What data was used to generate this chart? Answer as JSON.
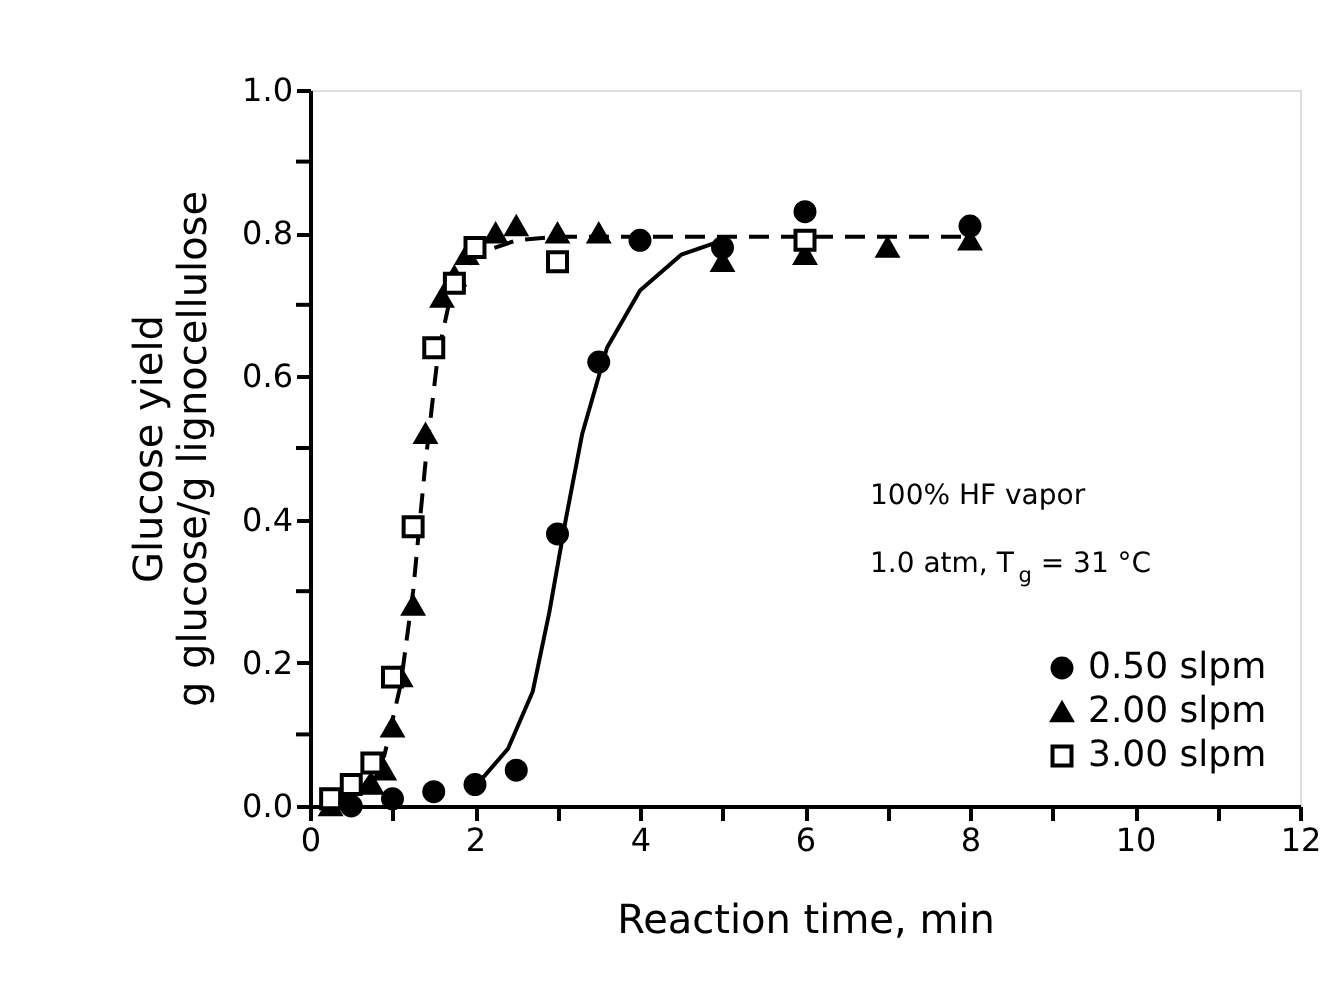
{
  "chart_data": {
    "type": "scatter",
    "xlabel": "Reaction time, min",
    "ylabel": "Glucose yield\ng glucose/g lignocellulose",
    "xlim": [
      0,
      12
    ],
    "ylim": [
      0,
      1.0
    ],
    "xticks": [
      0,
      {
        "value": 1,
        "label": null
      },
      2,
      {
        "value": 3,
        "label": null
      },
      4,
      {
        "value": 5,
        "label": null
      },
      6,
      {
        "value": 7,
        "label": null
      },
      8,
      {
        "value": 9,
        "label": null
      },
      10,
      {
        "value": 11,
        "label": null
      },
      12
    ],
    "yticks": [
      {
        "value": 0,
        "label": "0.0"
      },
      {
        "value": 0.1,
        "label": null
      },
      {
        "value": 0.2,
        "label": "0.2"
      },
      {
        "value": 0.3,
        "label": null
      },
      {
        "value": 0.4,
        "label": "0.4"
      },
      {
        "value": 0.5,
        "label": null
      },
      {
        "value": 0.6,
        "label": "0.6"
      },
      {
        "value": 0.7,
        "label": null
      },
      {
        "value": 0.8,
        "label": "0.8"
      },
      {
        "value": 0.9,
        "label": null
      },
      {
        "value": 1.0,
        "label": "1.0"
      }
    ],
    "grid": false,
    "legend": "bottom right",
    "annotations": [
      "100% HF vapor",
      "1.0 atm, T$_{g}$ = 31 °C"
    ],
    "series": [
      {
        "type": "line",
        "color": "#000000",
        "line_style": "solid",
        "x": [
          2.1,
          2.4,
          2.7,
          2.9,
          3.1,
          3.3,
          3.6,
          4.0,
          4.5,
          5.0
        ],
        "values": [
          0.04,
          0.08,
          0.16,
          0.27,
          0.4,
          0.52,
          0.64,
          0.72,
          0.77,
          0.79
        ]
      },
      {
        "type": "line",
        "color": "#000000",
        "line_style": "dashed",
        "x": [
          0.25,
          0.6,
          0.9,
          1.1,
          1.25,
          1.4,
          1.55,
          1.7,
          2.0,
          2.5,
          3.0,
          4.0,
          8.0
        ],
        "values": [
          0.005,
          0.02,
          0.07,
          0.17,
          0.3,
          0.48,
          0.63,
          0.71,
          0.77,
          0.79,
          0.795,
          0.795,
          0.795
        ]
      },
      {
        "name": "0.50 slpm",
        "marker": "circle",
        "color": "#000000",
        "x": [
          0.5,
          1.0,
          1.5,
          2.0,
          2.5,
          3.0,
          3.5,
          4.0,
          5.0,
          6.0,
          8.0
        ],
        "values": [
          0.0,
          0.01,
          0.02,
          0.03,
          0.05,
          0.38,
          0.62,
          0.79,
          0.78,
          0.83,
          0.81
        ]
      },
      {
        "name": "2.00 slpm",
        "marker": "triangle",
        "color": "#000000",
        "x": [
          0.25,
          0.75,
          0.9,
          1.0,
          1.1,
          1.25,
          1.4,
          1.6,
          1.75,
          1.9,
          2.25,
          2.5,
          3.0,
          3.5,
          5.0,
          6.0,
          7.0,
          8.0
        ],
        "values": [
          0.0,
          0.03,
          0.05,
          0.11,
          0.18,
          0.28,
          0.52,
          0.71,
          0.74,
          0.77,
          0.8,
          0.81,
          0.8,
          0.8,
          0.76,
          0.77,
          0.78,
          0.79
        ]
      },
      {
        "name": "3.00 slpm",
        "marker": "square",
        "color": "#000000",
        "x": [
          0.25,
          0.5,
          0.75,
          1.0,
          1.25,
          1.5,
          1.75,
          2.0,
          3.0,
          6.0
        ],
        "values": [
          0.01,
          0.03,
          0.06,
          0.18,
          0.39,
          0.64,
          0.73,
          0.78,
          0.76,
          0.79
        ]
      }
    ]
  }
}
